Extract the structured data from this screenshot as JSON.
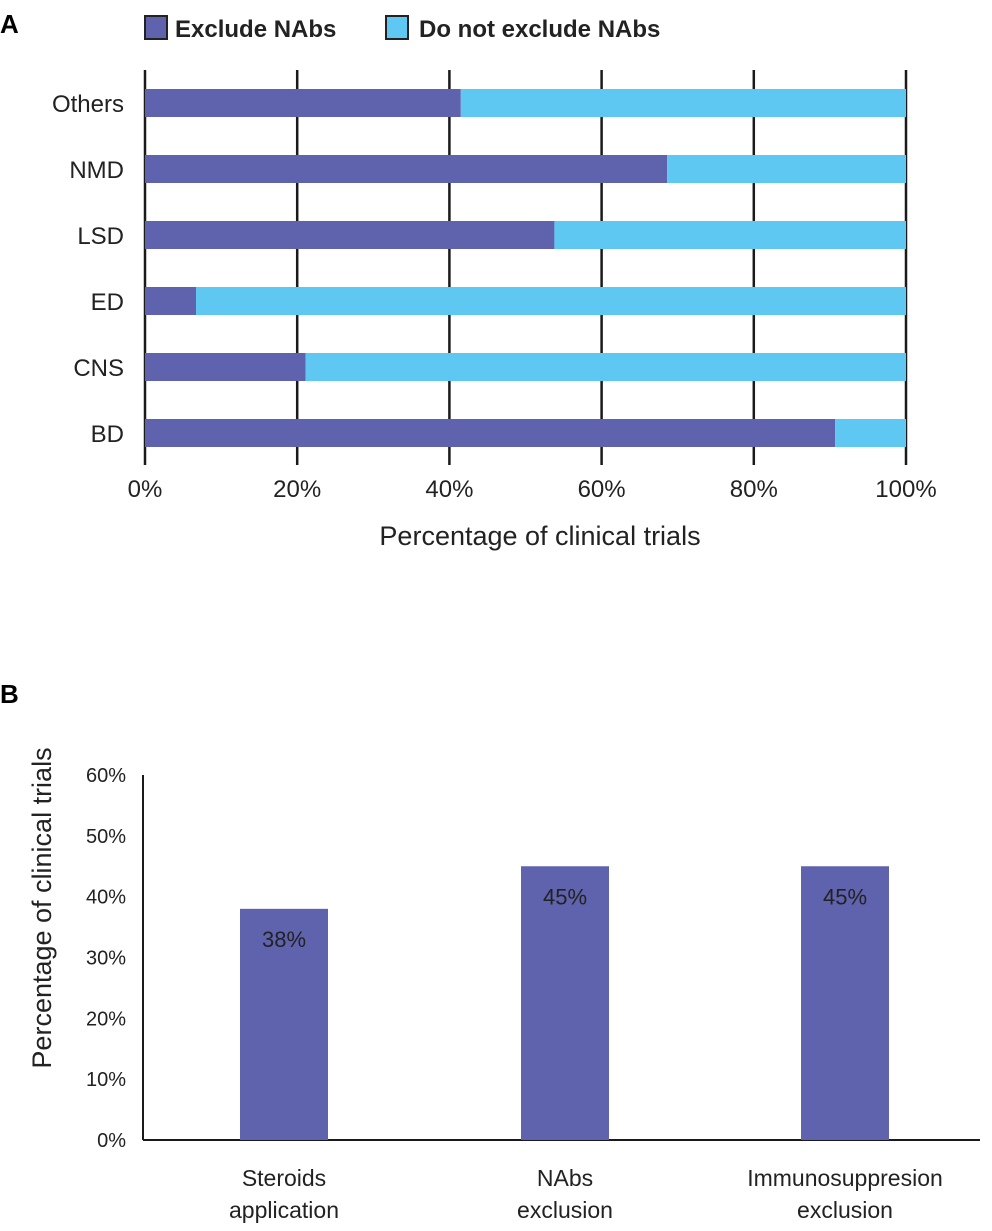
{
  "chart_data": [
    {
      "panel": "A",
      "type": "bar",
      "orientation": "horizontal",
      "stacked": true,
      "categories": [
        "Others",
        "NMD",
        "LSD",
        "ED",
        "CNS",
        "BD"
      ],
      "series": [
        {
          "name": "Exclude NAbs",
          "color": "#5f62ad",
          "values": [
            41.5,
            68.6,
            53.8,
            6.7,
            21.1,
            90.7
          ]
        },
        {
          "name": "Do not exclude NAbs",
          "color": "#5ec8f2",
          "values": [
            58.5,
            31.4,
            46.2,
            93.3,
            78.9,
            9.3
          ]
        }
      ],
      "xlim": [
        0,
        100
      ],
      "xticks": [
        "0%",
        "20%",
        "40%",
        "60%",
        "80%",
        "100%"
      ],
      "xlabel": "Percentage of clinical trials",
      "ylabel": "",
      "grid": true,
      "legend": "top"
    },
    {
      "panel": "B",
      "type": "bar",
      "orientation": "vertical",
      "categories": [
        [
          "Steroids",
          "application"
        ],
        [
          "NAbs",
          "exclusion"
        ],
        [
          "Immunosuppresion",
          "exclusion"
        ]
      ],
      "values": [
        38,
        45,
        45
      ],
      "data_labels": [
        "38%",
        "45%",
        "45%"
      ],
      "color": "#5f62ad",
      "ylim": [
        0,
        60
      ],
      "yticks": [
        "0%",
        "10%",
        "20%",
        "30%",
        "40%",
        "50%",
        "60%"
      ],
      "ylabel": "Percentage of clinical trials",
      "xlabel": "",
      "grid": false
    }
  ]
}
